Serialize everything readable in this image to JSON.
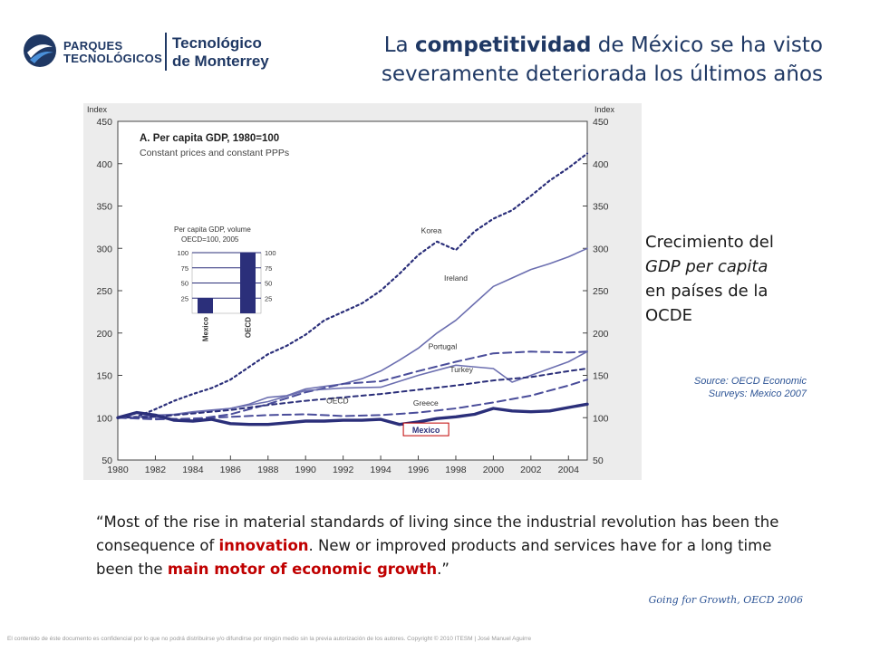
{
  "header": {
    "logo_pt_line1": "PARQUES",
    "logo_pt_line2": "TECNOLÓGICOS",
    "logo_tec_line1": "Tecnológico",
    "logo_tec_line2": "de Monterrey",
    "title_pre": "La ",
    "title_bold": "competitividad",
    "title_post1": " de México se ha visto",
    "title_line2": "severamente deteriorada los últimos años"
  },
  "side": {
    "line1": "Crecimiento del",
    "line2_italic": "GDP per capita",
    "line3": "en países de la",
    "line4": "OCDE",
    "source_line1": "Source: OECD Economic",
    "source_line2": "Surveys: Mexico 2007"
  },
  "quote": {
    "part1": "“Most of the rise in material standards of living since the industrial revolution has been the consequence of ",
    "hl1": "innovation",
    "part2": ".  New or improved products and services have for a long time been the ",
    "hl2": "main motor of economic growth",
    "part3": ".”",
    "source": "Going for Growth, OECD 2006"
  },
  "footer": {
    "text": "El contenido de éste documento es confidencial por lo que no podrá distribuirse y/o difundirse por ningún medio sin la previa autorización de los autores.  Copyright © 2010 ITESM  |  José Manuel Aguirre"
  },
  "colors": {
    "navy": "#1f3864",
    "red": "#c00000",
    "series": "#2b2f7a",
    "source_blue": "#2e5596"
  },
  "chart_data": {
    "type": "line",
    "title": "A. Per capita GDP,  1980=100",
    "subtitle": "Constant prices and constant PPPs",
    "ylabel_left": "Index",
    "ylabel_right": "Index",
    "y_ticks": [
      50,
      100,
      150,
      200,
      250,
      300,
      350,
      400,
      450
    ],
    "ylim": [
      50,
      450
    ],
    "x_ticks": [
      1980,
      1982,
      1984,
      1986,
      1988,
      1990,
      1992,
      1994,
      1996,
      1998,
      2000,
      2002,
      2004
    ],
    "xlim": [
      1980,
      2005
    ],
    "grid": false,
    "series": [
      {
        "name": "Korea",
        "style": "dotted",
        "x": [
          1980,
          1981,
          1982,
          1983,
          1984,
          1985,
          1986,
          1987,
          1988,
          1989,
          1990,
          1991,
          1992,
          1993,
          1994,
          1995,
          1996,
          1997,
          1998,
          1999,
          2000,
          2001,
          2002,
          2003,
          2004,
          2005
        ],
        "y": [
          100,
          101,
          110,
          120,
          128,
          135,
          145,
          160,
          175,
          185,
          198,
          215,
          225,
          235,
          250,
          270,
          292,
          308,
          298,
          320,
          335,
          345,
          362,
          380,
          395,
          412
        ]
      },
      {
        "name": "Ireland",
        "style": "solid-light",
        "x": [
          1980,
          1981,
          1982,
          1983,
          1984,
          1985,
          1986,
          1987,
          1988,
          1989,
          1990,
          1991,
          1992,
          1993,
          1994,
          1995,
          1996,
          1997,
          1998,
          1999,
          2000,
          2001,
          2002,
          2003,
          2004,
          2005
        ],
        "y": [
          100,
          101,
          103,
          104,
          107,
          109,
          111,
          116,
          124,
          126,
          134,
          137,
          140,
          146,
          155,
          168,
          182,
          200,
          215,
          235,
          255,
          265,
          275,
          282,
          290,
          300
        ]
      },
      {
        "name": "Portugal",
        "style": "dashed",
        "x": [
          1980,
          1982,
          1984,
          1986,
          1988,
          1990,
          1992,
          1994,
          1996,
          1998,
          2000,
          2002,
          2004,
          2005
        ],
        "y": [
          100,
          99,
          98,
          104,
          116,
          130,
          140,
          143,
          155,
          166,
          176,
          178,
          177,
          178
        ]
      },
      {
        "name": "Turkey",
        "style": "solid-light",
        "x": [
          1980,
          1982,
          1984,
          1986,
          1988,
          1990,
          1992,
          1994,
          1996,
          1998,
          2000,
          2001,
          2002,
          2004,
          2005
        ],
        "y": [
          100,
          101,
          106,
          111,
          119,
          132,
          135,
          136,
          150,
          162,
          158,
          142,
          150,
          166,
          178
        ]
      },
      {
        "name": "OECD",
        "style": "dashed-short",
        "x": [
          1980,
          1982,
          1984,
          1986,
          1988,
          1990,
          1992,
          1994,
          1996,
          1998,
          2000,
          2002,
          2004,
          2005
        ],
        "y": [
          100,
          101,
          105,
          109,
          115,
          120,
          124,
          128,
          133,
          138,
          144,
          148,
          155,
          158
        ]
      },
      {
        "name": "Greece",
        "style": "dashed",
        "x": [
          1980,
          1982,
          1984,
          1986,
          1988,
          1990,
          1992,
          1994,
          1996,
          1998,
          2000,
          2002,
          2004,
          2005
        ],
        "y": [
          100,
          98,
          99,
          101,
          103,
          104,
          102,
          103,
          106,
          111,
          118,
          126,
          138,
          145
        ]
      },
      {
        "name": "Mexico",
        "style": "solid-thick",
        "x": [
          1980,
          1981,
          1982,
          1983,
          1984,
          1985,
          1986,
          1987,
          1988,
          1989,
          1990,
          1991,
          1992,
          1993,
          1994,
          1995,
          1996,
          1997,
          1998,
          1999,
          2000,
          2001,
          2002,
          2003,
          2004,
          2005
        ],
        "y": [
          100,
          106,
          103,
          97,
          96,
          98,
          93,
          92,
          92,
          94,
          96,
          96,
          97,
          97,
          98,
          92,
          95,
          99,
          101,
          104,
          111,
          108,
          107,
          108,
          112,
          116
        ]
      }
    ],
    "inset": {
      "title_line1": "Per capita GDP, volume",
      "title_line2": "OECD=100, 2005",
      "ticks": [
        25,
        50,
        75,
        100
      ],
      "bars": [
        {
          "label": "Mexico",
          "value": 25
        },
        {
          "label": "OECD",
          "value": 100
        }
      ]
    }
  }
}
